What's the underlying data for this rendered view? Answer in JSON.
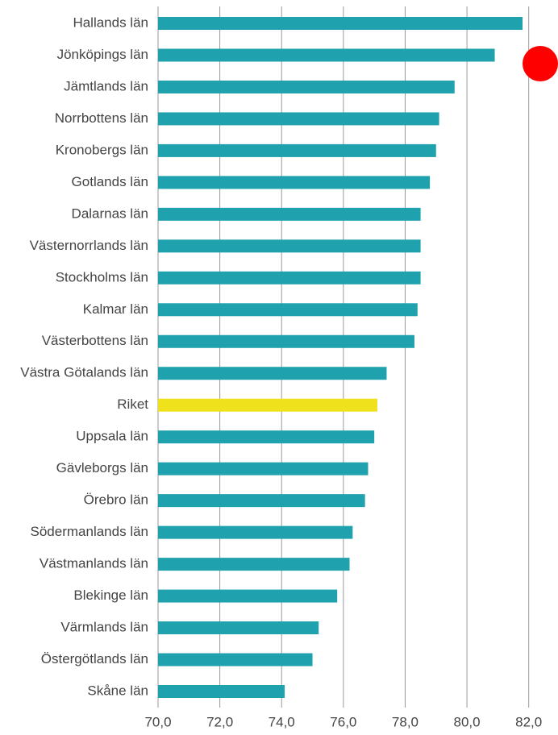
{
  "chart_data": {
    "type": "bar",
    "orientation": "horizontal",
    "categories": [
      "Hallands län",
      "Jönköpings län",
      "Jämtlands län",
      "Norrbottens län",
      "Kronobergs län",
      "Gotlands län",
      "Dalarnas län",
      "Västernorrlands län",
      "Stockholms län",
      "Kalmar län",
      "Västerbottens län",
      "Västra Götalands län",
      "Riket",
      "Uppsala län",
      "Gävleborgs län",
      "Örebro län",
      "Södermanlands län",
      "Västmanlands län",
      "Blekinge län",
      "Värmlands län",
      "Östergötlands län",
      "Skåne län"
    ],
    "values": [
      81.8,
      80.9,
      79.6,
      79.1,
      79.0,
      78.8,
      78.5,
      78.5,
      78.5,
      78.4,
      78.3,
      77.4,
      77.1,
      77.0,
      76.8,
      76.7,
      76.3,
      76.2,
      75.8,
      75.2,
      75.0,
      74.1
    ],
    "colors": [
      "#1fa2ae",
      "#1fa2ae",
      "#1fa2ae",
      "#1fa2ae",
      "#1fa2ae",
      "#1fa2ae",
      "#1fa2ae",
      "#1fa2ae",
      "#1fa2ae",
      "#1fa2ae",
      "#1fa2ae",
      "#1fa2ae",
      "#efe11c",
      "#1fa2ae",
      "#1fa2ae",
      "#1fa2ae",
      "#1fa2ae",
      "#1fa2ae",
      "#1fa2ae",
      "#1fa2ae",
      "#1fa2ae",
      "#1fa2ae"
    ],
    "xlim": [
      70,
      83
    ],
    "xticks": [
      {
        "value": 70,
        "label": "70,0"
      },
      {
        "value": 72,
        "label": "72,0"
      },
      {
        "value": 74,
        "label": "74,0"
      },
      {
        "value": 76,
        "label": "76,0"
      },
      {
        "value": 78,
        "label": "78,0"
      },
      {
        "value": 80,
        "label": "80,0"
      },
      {
        "value": 82,
        "label": "82,0"
      }
    ],
    "grid": true
  }
}
